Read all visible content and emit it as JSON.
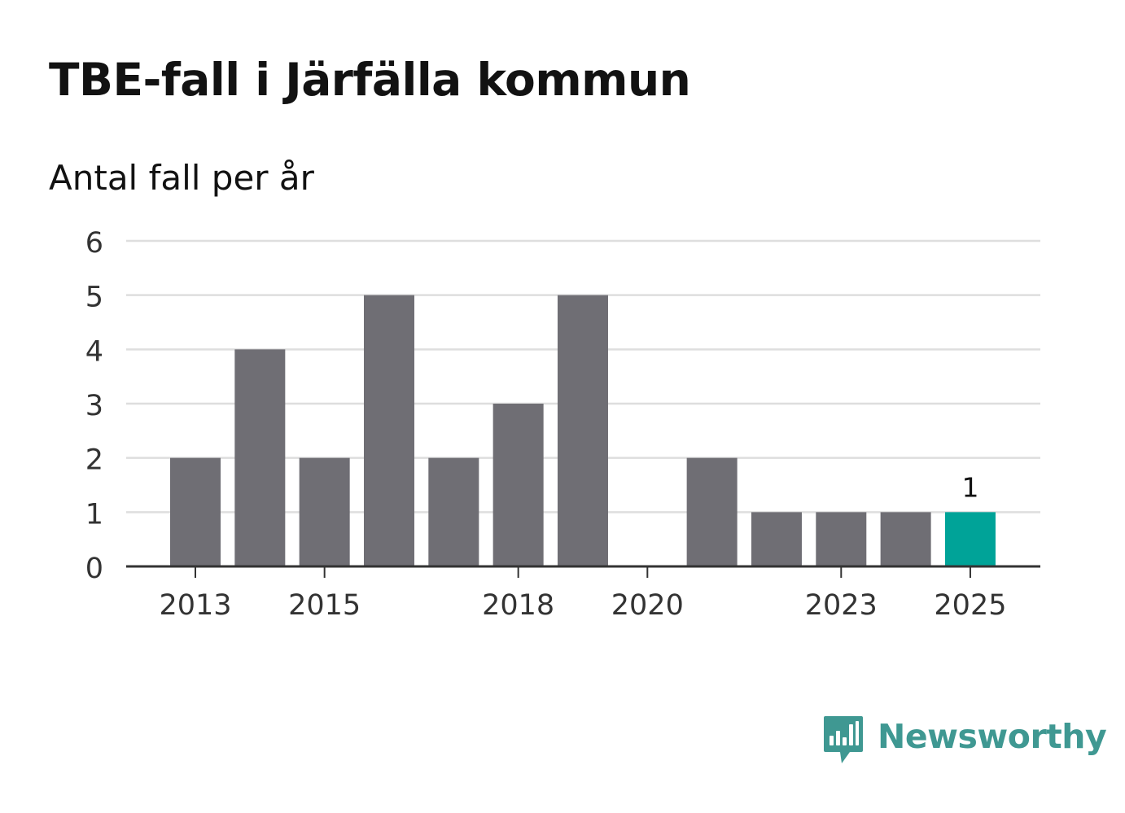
{
  "chart_data": {
    "type": "bar",
    "title": "TBE-fall i Järfälla kommun",
    "subtitle": "Antal fall per år",
    "xlabel": "",
    "ylabel": "",
    "categories": [
      "2013",
      "2014",
      "2015",
      "2016",
      "2017",
      "2018",
      "2019",
      "2020",
      "2021",
      "2022",
      "2023",
      "2024",
      "2025"
    ],
    "values": [
      2,
      4,
      2,
      5,
      2,
      3,
      5,
      0,
      2,
      1,
      1,
      1,
      1
    ],
    "x_tick_labels": [
      "2013",
      "2015",
      "2018",
      "2020",
      "2023",
      "2025"
    ],
    "y_tick_labels": [
      "0",
      "1",
      "2",
      "3",
      "4",
      "5",
      "6"
    ],
    "ylim": [
      0,
      6
    ],
    "grid": true,
    "highlight": {
      "category": "2025",
      "value_label": "1"
    },
    "colors": {
      "bar": "#6f6e74",
      "highlight": "#00a398",
      "grid": "#dedede",
      "axis": "#333333",
      "text": "#333333"
    }
  },
  "brand": {
    "name": "Newsworthy",
    "icon": "newsworthy-logo-icon",
    "color": "#3f9892"
  }
}
